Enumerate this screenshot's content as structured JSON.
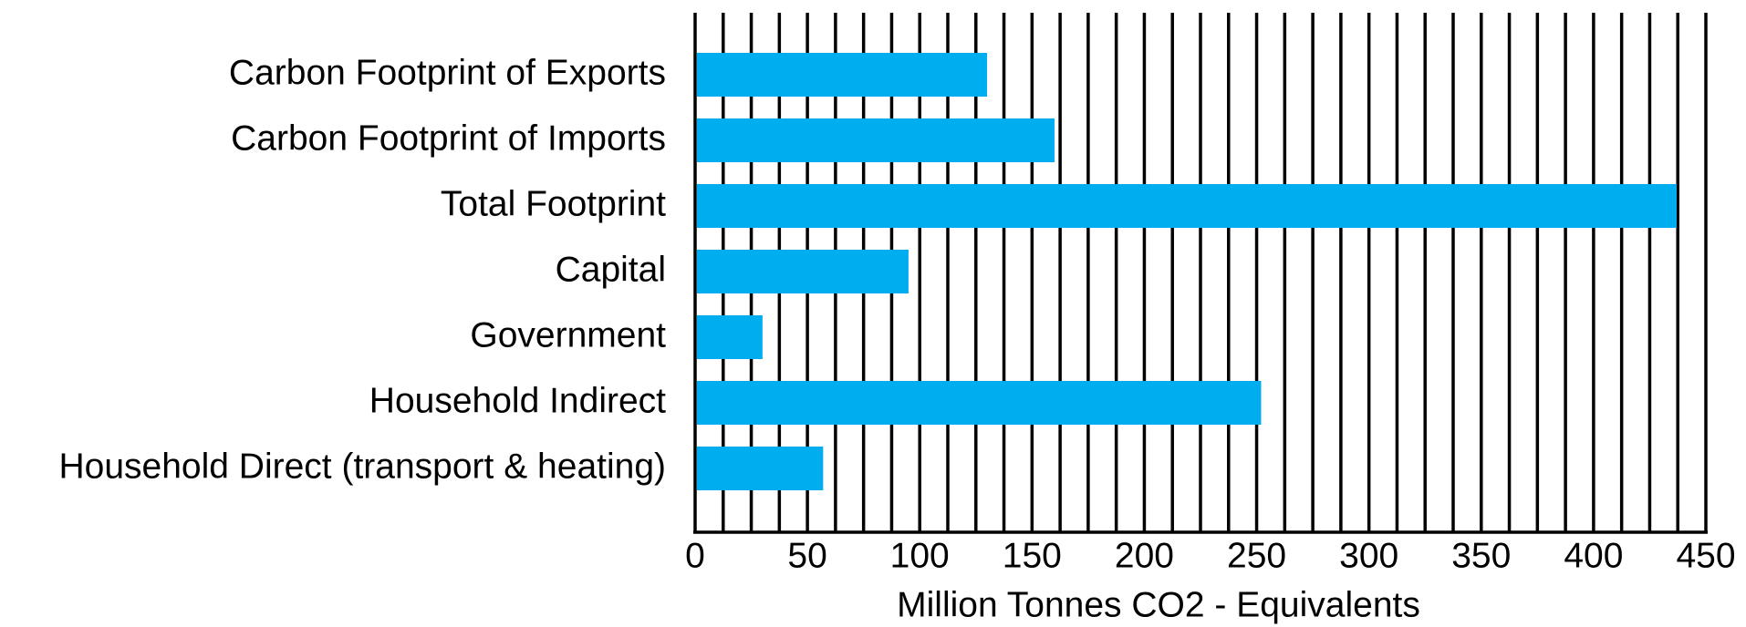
{
  "chart_data": {
    "type": "barh",
    "categories": [
      "Carbon Footprint of Exports",
      "Carbon Footprint of Imports",
      "Total Footprint",
      "Capital",
      "Government",
      "Household Indirect",
      "Household Direct (transport & heating)"
    ],
    "values": [
      130,
      160,
      437,
      95,
      30,
      252,
      57
    ],
    "color": "#00aeef",
    "xlabel": "Million Tonnes CO2 - Equivalents",
    "xlim": [
      0,
      450
    ],
    "xticks": [
      0,
      50,
      100,
      150,
      200,
      250,
      300,
      350,
      400,
      450
    ],
    "xminor_ticks": [
      0,
      12.5,
      25,
      37.5,
      50,
      62.5,
      75,
      87.5,
      100,
      112.5,
      125,
      137.5,
      150,
      162.5,
      175,
      187.5,
      200,
      212.5,
      225,
      237.5,
      250,
      262.5,
      275,
      287.5,
      300,
      312.5,
      325,
      337.5,
      350,
      362.5,
      375,
      387.5,
      400,
      412.5,
      425,
      437.5,
      450
    ],
    "grid": true
  }
}
